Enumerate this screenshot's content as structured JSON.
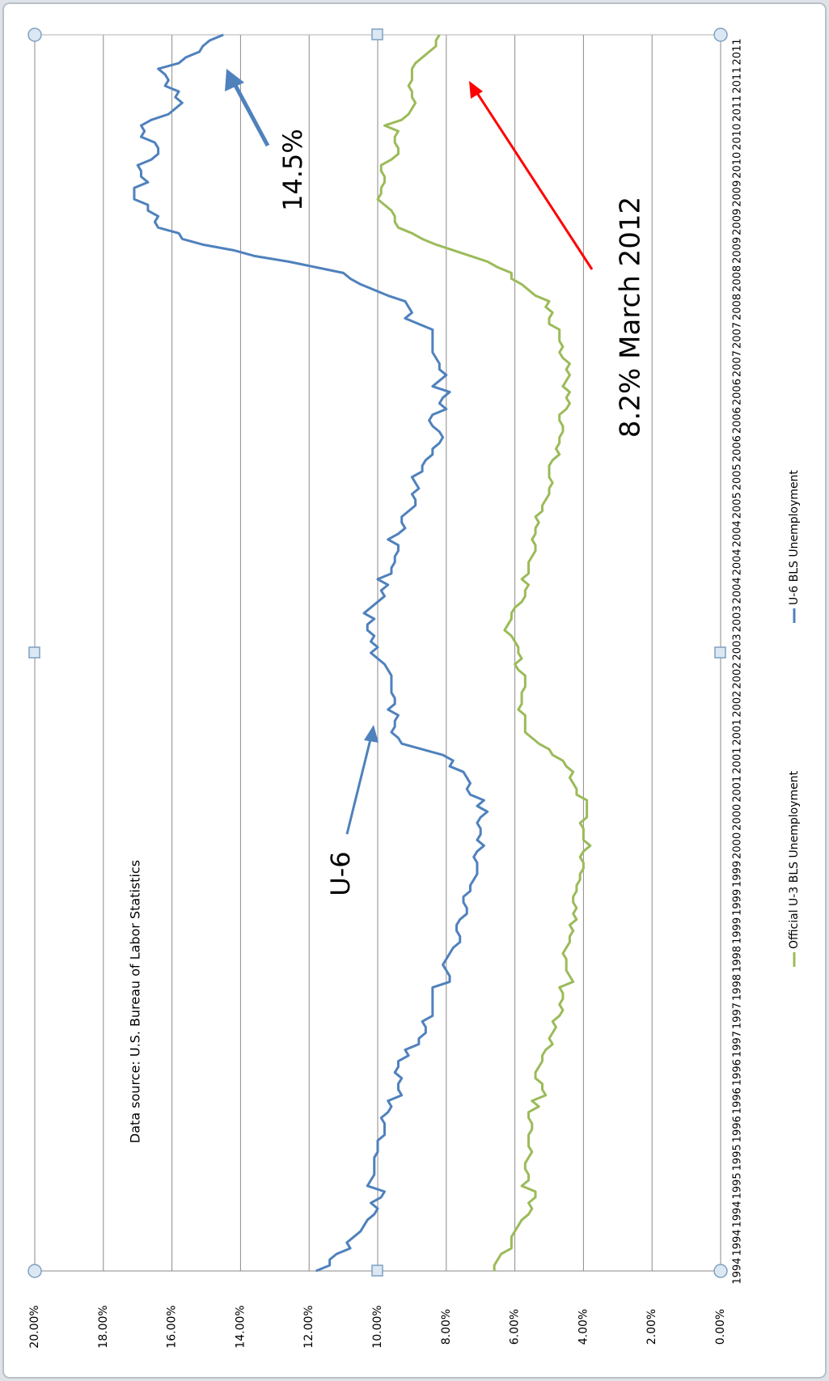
{
  "chart_data": {
    "type": "line",
    "rotated": true,
    "categories": [
      "1994",
      null,
      null,
      null,
      null,
      "1994",
      null,
      null,
      null,
      null,
      "1994",
      null,
      null,
      null,
      null,
      "1995",
      null,
      null,
      null,
      null,
      "1995",
      null,
      null,
      null,
      null,
      "1996",
      null,
      null,
      null,
      null,
      "1996",
      null,
      null,
      null,
      null,
      "1996",
      null,
      null,
      null,
      null,
      "1997",
      null,
      null,
      null,
      null,
      "1997",
      null,
      null,
      null,
      null,
      "1998",
      null,
      null,
      null,
      null,
      "1998",
      null,
      null,
      null,
      null,
      "1999",
      null,
      null,
      null,
      null,
      "1999",
      null,
      null,
      null,
      null,
      "1999",
      null,
      null,
      null,
      null,
      "2000",
      null,
      null,
      null,
      null,
      "2000",
      null,
      null,
      null,
      null,
      "2001",
      null,
      null,
      null,
      null,
      "2001",
      null,
      null,
      null,
      null,
      "2001",
      null,
      null,
      null,
      null,
      "2002",
      null,
      null,
      null,
      null,
      "2002",
      null,
      null,
      null,
      null,
      "2003",
      null,
      null,
      null,
      null,
      "2003",
      null,
      null,
      null,
      null,
      "2004",
      null,
      null,
      null,
      null,
      "2004",
      null,
      null,
      null,
      null,
      "2004",
      null,
      null,
      null,
      null,
      "2005",
      null,
      null,
      null,
      null,
      "2005",
      null,
      null,
      null,
      null,
      "2006",
      null,
      null,
      null,
      null,
      "2006",
      null,
      null,
      null,
      null,
      "2006",
      null,
      null,
      null,
      null,
      "2007",
      null,
      null,
      null,
      null,
      "2007",
      null,
      null,
      null,
      null,
      "2008",
      null,
      null,
      null,
      null,
      "2008",
      null,
      null,
      null,
      null,
      "2009",
      null,
      null,
      null,
      null,
      "2009",
      null,
      null,
      null,
      null,
      "2009",
      null,
      null,
      null,
      null,
      "2010",
      null,
      null,
      null,
      null,
      "2010",
      null,
      null,
      null,
      null,
      "2011",
      null,
      null,
      null,
      null,
      "2011",
      null,
      null,
      null,
      null,
      "2011",
      null,
      null,
      null
    ],
    "series": [
      {
        "name": "Official U-3 BLS Unemployment",
        "color": "#9bbb59",
        "values": [
          6.6,
          6.6,
          6.5,
          6.4,
          6.1,
          6.1,
          6.1,
          6.0,
          5.9,
          5.8,
          5.6,
          5.5,
          5.6,
          5.4,
          5.4,
          5.8,
          5.6,
          5.6,
          5.7,
          5.7,
          5.6,
          5.5,
          5.6,
          5.6,
          5.6,
          5.5,
          5.5,
          5.6,
          5.6,
          5.3,
          5.5,
          5.1,
          5.2,
          5.2,
          5.4,
          5.4,
          5.3,
          5.2,
          5.2,
          5.1,
          4.9,
          5.0,
          4.9,
          4.8,
          4.9,
          4.7,
          4.6,
          4.7,
          4.6,
          4.6,
          4.7,
          4.3,
          4.4,
          4.5,
          4.5,
          4.5,
          4.6,
          4.5,
          4.4,
          4.4,
          4.3,
          4.4,
          4.2,
          4.3,
          4.2,
          4.3,
          4.3,
          4.2,
          4.2,
          4.1,
          4.1,
          4.0,
          4.0,
          4.1,
          4.0,
          3.8,
          4.0,
          4.0,
          4.0,
          4.1,
          3.9,
          3.9,
          3.9,
          3.9,
          4.2,
          4.2,
          4.3,
          4.4,
          4.3,
          4.5,
          4.6,
          4.9,
          5.0,
          5.3,
          5.5,
          5.7,
          5.7,
          5.7,
          5.7,
          5.9,
          5.8,
          5.8,
          5.8,
          5.7,
          5.7,
          5.7,
          5.9,
          6.0,
          5.8,
          5.9,
          5.9,
          6.0,
          6.1,
          6.3,
          6.2,
          6.1,
          6.1,
          6.0,
          5.8,
          5.7,
          5.7,
          5.6,
          5.8,
          5.6,
          5.6,
          5.6,
          5.5,
          5.4,
          5.4,
          5.5,
          5.4,
          5.4,
          5.3,
          5.4,
          5.2,
          5.2,
          5.1,
          5.0,
          5.0,
          4.9,
          5.0,
          5.0,
          5.0,
          4.9,
          4.7,
          4.8,
          4.7,
          4.7,
          4.6,
          4.6,
          4.7,
          4.7,
          4.5,
          4.4,
          4.5,
          4.4,
          4.6,
          4.5,
          4.4,
          4.5,
          4.4,
          4.6,
          4.7,
          4.6,
          4.7,
          4.7,
          4.7,
          5.0,
          5.0,
          4.9,
          5.1,
          5.0,
          5.4,
          5.6,
          5.8,
          6.1,
          6.1,
          6.5,
          6.8,
          7.3,
          7.8,
          8.3,
          8.7,
          9.0,
          9.4,
          9.5,
          9.5,
          9.6,
          9.8,
          10.0,
          9.9,
          9.9,
          9.8,
          9.8,
          9.9,
          9.9,
          9.6,
          9.4,
          9.4,
          9.5,
          9.5,
          9.4,
          9.8,
          9.3,
          9.1,
          9.0,
          8.9,
          9.0,
          9.0,
          9.1,
          9.0,
          9.0,
          9.0,
          8.9,
          8.7,
          8.5,
          8.3,
          8.3,
          8.2
        ]
      },
      {
        "name": "U-6 BLS Unemployment",
        "color": "#4f81bd",
        "values": [
          11.8,
          11.4,
          11.4,
          11.2,
          10.8,
          10.9,
          10.7,
          10.5,
          10.4,
          10.3,
          10.1,
          10.0,
          10.2,
          9.9,
          9.8,
          10.3,
          10.2,
          10.1,
          10.1,
          10.1,
          10.1,
          10.0,
          10.0,
          10.0,
          9.8,
          9.8,
          9.8,
          9.9,
          9.7,
          9.6,
          9.7,
          9.3,
          9.4,
          9.4,
          9.3,
          9.5,
          9.4,
          9.4,
          9.1,
          9.2,
          8.8,
          8.8,
          8.6,
          8.6,
          8.7,
          8.4,
          8.4,
          8.4,
          8.4,
          8.4,
          8.4,
          7.9,
          7.9,
          8.0,
          8.1,
          8.0,
          7.9,
          7.8,
          7.6,
          7.6,
          7.7,
          7.7,
          7.6,
          7.4,
          7.4,
          7.5,
          7.5,
          7.3,
          7.3,
          7.2,
          7.1,
          7.1,
          7.1,
          7.2,
          7.1,
          6.9,
          7.1,
          7.0,
          7.0,
          7.1,
          7.0,
          6.8,
          7.1,
          6.9,
          7.3,
          7.4,
          7.3,
          7.4,
          7.5,
          7.9,
          7.8,
          8.1,
          8.7,
          9.3,
          9.4,
          9.6,
          9.5,
          9.5,
          9.4,
          9.7,
          9.5,
          9.5,
          9.6,
          9.6,
          9.6,
          9.6,
          9.7,
          9.8,
          10.0,
          10.2,
          10.0,
          10.2,
          10.1,
          10.3,
          10.3,
          10.1,
          10.4,
          10.2,
          10.0,
          9.8,
          9.9,
          9.7,
          10.0,
          9.6,
          9.6,
          9.5,
          9.5,
          9.4,
          9.4,
          9.7,
          9.4,
          9.2,
          9.3,
          9.3,
          9.1,
          8.9,
          8.9,
          9.0,
          8.8,
          8.9,
          9.0,
          8.7,
          8.7,
          8.6,
          8.4,
          8.4,
          8.2,
          8.1,
          8.2,
          8.4,
          8.5,
          8.4,
          8.0,
          8.2,
          8.1,
          7.9,
          8.4,
          8.2,
          8.0,
          8.2,
          8.2,
          8.3,
          8.4,
          8.4,
          8.4,
          8.4,
          8.4,
          8.8,
          9.2,
          9.0,
          9.1,
          9.2,
          9.7,
          10.1,
          10.5,
          10.8,
          11.0,
          11.8,
          12.6,
          13.6,
          14.2,
          15.1,
          15.7,
          15.8,
          16.4,
          16.5,
          16.4,
          16.7,
          16.7,
          17.1,
          17.1,
          17.1,
          16.7,
          16.9,
          16.9,
          17.0,
          16.6,
          16.4,
          16.4,
          16.5,
          16.9,
          16.8,
          16.9,
          16.6,
          16.1,
          15.9,
          15.7,
          15.9,
          15.8,
          16.2,
          16.1,
          16.2,
          16.4,
          15.8,
          15.6,
          15.2,
          15.1,
          14.9,
          14.5
        ]
      }
    ],
    "ylim": [
      0,
      20
    ],
    "yticks": [
      {
        "value": 0,
        "label": "0.00%"
      },
      {
        "value": 2,
        "label": "2.00%"
      },
      {
        "value": 4,
        "label": "4.00%"
      },
      {
        "value": 6,
        "label": "6.00%"
      },
      {
        "value": 8,
        "label": "8.00%"
      },
      {
        "value": 10,
        "label": "10.00%"
      },
      {
        "value": 12,
        "label": "12.00%"
      },
      {
        "value": 14,
        "label": "14.00%"
      },
      {
        "value": 16,
        "label": "16.00%"
      },
      {
        "value": 18,
        "label": "18.00%"
      },
      {
        "value": 20,
        "label": "20.00%"
      }
    ],
    "grid": true,
    "legend": "bottom",
    "annotations": [
      "Data source:  U.S. Bureau of Labor Statistics",
      "U-6",
      "14.5%",
      "8.2% March 2012"
    ]
  }
}
